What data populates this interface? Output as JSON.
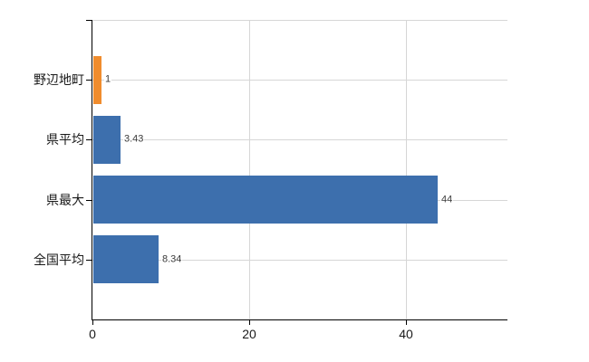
{
  "chart": {
    "background_color": "#ffffff",
    "axis_color": "#000000",
    "grid_color": "#d6d6d6",
    "category_text_color": "#1a1a1a",
    "value_text_color": "#3a3a3a"
  },
  "chart_data": {
    "type": "bar",
    "orientation": "horizontal",
    "title": "",
    "xlabel": "",
    "ylabel": "",
    "categories": [
      "野辺地町",
      "県平均",
      "県最大",
      "全国平均"
    ],
    "values": [
      1,
      3.43,
      44,
      8.34
    ],
    "value_labels": [
      "1",
      "3.43",
      "44",
      "8.34"
    ],
    "bar_colors": [
      "#f08c2d",
      "#3d6fad",
      "#3d6fad",
      "#3d6fad"
    ],
    "highlight_color": "#f08c2d",
    "series_color": "#3d6fad",
    "xlim": [
      0,
      53
    ],
    "xticks": [
      0,
      20,
      40
    ],
    "xtick_labels": [
      "0",
      "20",
      "40"
    ],
    "grid": true,
    "legend": false
  }
}
